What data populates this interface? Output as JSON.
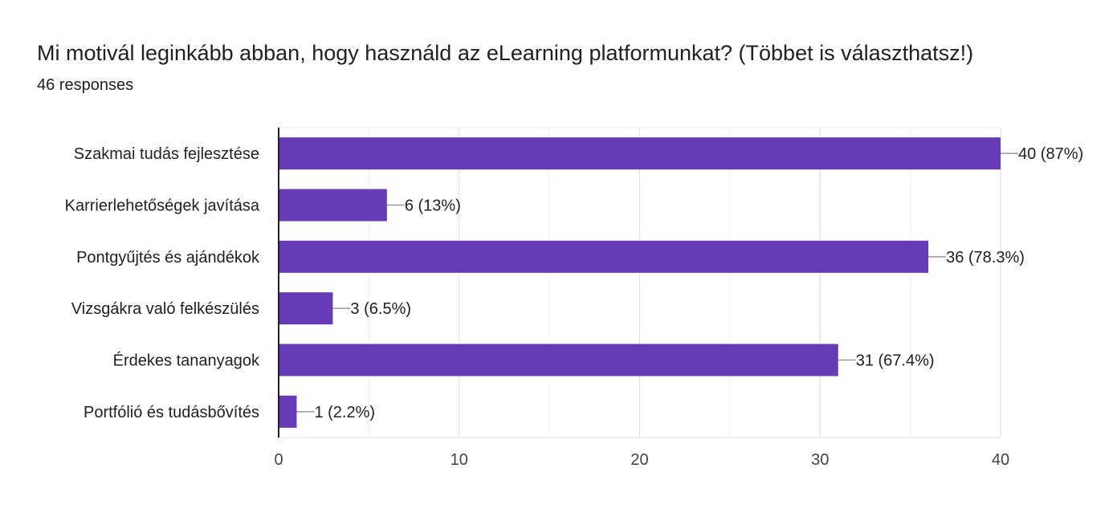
{
  "question": {
    "title": "Mi motivál leginkább abban, hogy használd az eLearning platformunkat? (Többet is választhatsz!)",
    "responses": "46 responses"
  },
  "colors": {
    "bar": "#673ab7",
    "grid": "#e6e6e6",
    "axis": "#202124",
    "text": "#202124",
    "connector": "#999999"
  },
  "chart_data": {
    "type": "bar",
    "orientation": "horizontal",
    "title": "Mi motivál leginkább abban, hogy használd az eLearning platformunkat? (Többet is választhatsz!)",
    "xlabel": "",
    "ylabel": "",
    "xlim": [
      0,
      40
    ],
    "xticks": [
      0,
      10,
      20,
      30,
      40
    ],
    "grid": true,
    "categories": [
      "Szakmai tudás fejlesztése",
      "Karrierlehetőségek javítása",
      "Pontgyűjtés és ajándékok",
      "Vizsgákra való felkészülés",
      "Érdekes tananyagok",
      "Portfólió és tudásbővítés"
    ],
    "values": [
      40,
      6,
      36,
      3,
      31,
      1
    ],
    "labels": [
      "40 (87%)",
      "6 (13%)",
      "36 (78.3%)",
      "3 (6.5%)",
      "31 (67.4%)",
      "1 (2.2%)"
    ]
  }
}
